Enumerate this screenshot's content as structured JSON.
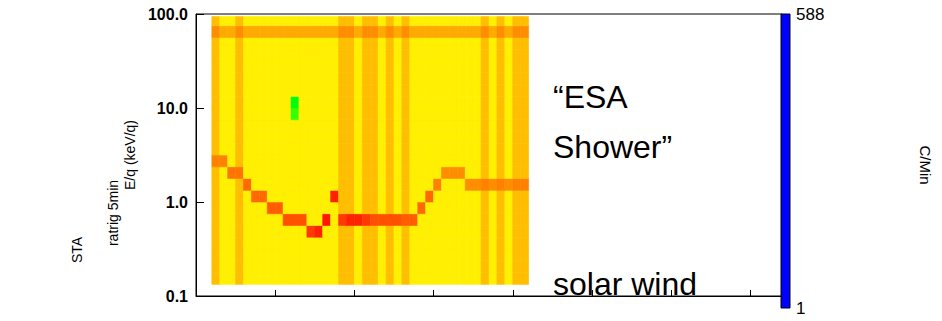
{
  "chart_data": {
    "type": "heatmap",
    "y_label": "E/q (keV/q)",
    "side_labels": [
      "STA",
      "ratrig 5min"
    ],
    "colorbar_label": "C/Min",
    "annotations": [
      "“ESA Shower”",
      "solar wind"
    ],
    "log": "y",
    "tick_labels": "y",
    "xlim": [
      0,
      74
    ],
    "xticks": [
      0,
      10,
      20,
      30,
      40,
      50,
      60,
      70
    ],
    "ylim": [
      0.1,
      100
    ],
    "yticks": [
      0.1,
      {
        "value": 1,
        "label": "1.0"
      },
      {
        "value": 10,
        "label": "10.0"
      },
      {
        "value": 100,
        "label": "100.0"
      }
    ],
    "time_bins": [
      2,
      3,
      4,
      5,
      6,
      7,
      8,
      9,
      10,
      11,
      12,
      13,
      14,
      15,
      16,
      17,
      18,
      19,
      20,
      21,
      22,
      23,
      24,
      25,
      26,
      27,
      28,
      29,
      30,
      31,
      32,
      33,
      34,
      35,
      36,
      37,
      38,
      39,
      40,
      41,
      42
    ],
    "energy_bins": [
      0.133,
      0.178,
      0.237,
      0.316,
      0.422,
      0.562,
      0.75,
      1.0,
      1.33,
      1.78,
      2.37,
      3.16,
      4.22,
      5.62,
      7.5,
      10,
      13.3,
      17.8,
      23.7,
      31.6,
      42.2,
      56.2,
      75,
      94
    ],
    "colorbar_range": [
      1,
      588
    ],
    "colorbar_ticks": [
      1,
      588
    ],
    "cells": [
      [
        420,
        370,
        370,
        420,
        370,
        370,
        370,
        370,
        370,
        370,
        370,
        370,
        370,
        370,
        370,
        370,
        420,
        420,
        370,
        420,
        420,
        370,
        420,
        370,
        420,
        370,
        370,
        370,
        370,
        370,
        370,
        370,
        370,
        370,
        420,
        370,
        420,
        370,
        420,
        420
      ],
      [
        420,
        370,
        370,
        420,
        370,
        370,
        370,
        370,
        370,
        370,
        370,
        370,
        370,
        370,
        370,
        370,
        420,
        420,
        370,
        420,
        420,
        370,
        420,
        370,
        420,
        370,
        370,
        370,
        370,
        370,
        370,
        370,
        370,
        370,
        420,
        370,
        420,
        370,
        420,
        420
      ],
      [
        420,
        370,
        370,
        420,
        370,
        370,
        370,
        370,
        370,
        370,
        370,
        370,
        370,
        370,
        370,
        370,
        420,
        420,
        370,
        420,
        420,
        370,
        420,
        370,
        420,
        370,
        370,
        370,
        370,
        370,
        370,
        370,
        370,
        370,
        420,
        370,
        420,
        370,
        420,
        420
      ],
      [
        420,
        370,
        370,
        420,
        370,
        370,
        370,
        370,
        370,
        370,
        370,
        370,
        370,
        370,
        370,
        370,
        420,
        420,
        370,
        420,
        420,
        370,
        420,
        370,
        420,
        370,
        370,
        370,
        370,
        370,
        370,
        370,
        370,
        370,
        420,
        370,
        420,
        370,
        420,
        420
      ],
      [
        420,
        370,
        370,
        420,
        370,
        370,
        370,
        370,
        370,
        370,
        370,
        370,
        540,
        560,
        370,
        370,
        420,
        420,
        370,
        420,
        420,
        370,
        420,
        370,
        420,
        370,
        370,
        370,
        370,
        370,
        370,
        370,
        370,
        370,
        420,
        370,
        420,
        370,
        420,
        420
      ],
      [
        420,
        370,
        370,
        420,
        370,
        370,
        370,
        370,
        370,
        520,
        520,
        520,
        370,
        370,
        570,
        370,
        540,
        560,
        560,
        540,
        520,
        520,
        520,
        520,
        510,
        510,
        370,
        370,
        370,
        370,
        370,
        370,
        370,
        370,
        420,
        370,
        420,
        370,
        420,
        420
      ],
      [
        420,
        370,
        370,
        420,
        370,
        370,
        370,
        510,
        510,
        370,
        370,
        370,
        370,
        370,
        370,
        370,
        420,
        420,
        370,
        420,
        420,
        370,
        420,
        370,
        420,
        370,
        500,
        370,
        370,
        370,
        370,
        370,
        370,
        370,
        420,
        370,
        420,
        370,
        420,
        420
      ],
      [
        420,
        370,
        370,
        420,
        370,
        500,
        500,
        370,
        370,
        370,
        370,
        370,
        370,
        370,
        370,
        560,
        420,
        420,
        370,
        420,
        420,
        370,
        420,
        370,
        420,
        370,
        370,
        500,
        370,
        370,
        370,
        370,
        370,
        370,
        420,
        370,
        420,
        370,
        420,
        420
      ],
      [
        420,
        370,
        370,
        420,
        500,
        370,
        370,
        370,
        370,
        370,
        370,
        370,
        370,
        370,
        370,
        370,
        420,
        420,
        370,
        420,
        420,
        370,
        420,
        370,
        420,
        370,
        370,
        370,
        480,
        370,
        370,
        370,
        470,
        470,
        480,
        470,
        480,
        470,
        480,
        480
      ],
      [
        420,
        370,
        490,
        490,
        370,
        370,
        370,
        370,
        370,
        370,
        370,
        370,
        370,
        370,
        370,
        370,
        420,
        420,
        370,
        420,
        420,
        370,
        420,
        370,
        420,
        370,
        370,
        370,
        370,
        470,
        470,
        470,
        370,
        370,
        420,
        370,
        420,
        370,
        420,
        420
      ],
      [
        480,
        480,
        370,
        420,
        370,
        370,
        370,
        370,
        370,
        370,
        370,
        370,
        370,
        370,
        370,
        370,
        420,
        420,
        370,
        420,
        420,
        370,
        420,
        370,
        420,
        370,
        370,
        370,
        370,
        370,
        370,
        370,
        370,
        370,
        420,
        370,
        420,
        370,
        420,
        420
      ],
      [
        420,
        370,
        370,
        420,
        370,
        370,
        370,
        370,
        370,
        370,
        370,
        370,
        370,
        370,
        370,
        370,
        420,
        420,
        370,
        420,
        420,
        370,
        420,
        370,
        420,
        370,
        370,
        370,
        370,
        370,
        370,
        370,
        370,
        370,
        420,
        370,
        420,
        370,
        420,
        420
      ],
      [
        420,
        370,
        370,
        420,
        370,
        370,
        370,
        370,
        370,
        370,
        370,
        370,
        370,
        370,
        370,
        370,
        420,
        420,
        370,
        420,
        420,
        370,
        420,
        370,
        420,
        370,
        370,
        370,
        370,
        370,
        370,
        370,
        370,
        370,
        420,
        370,
        420,
        370,
        420,
        420
      ],
      [
        420,
        370,
        370,
        420,
        370,
        370,
        370,
        370,
        370,
        370,
        370,
        370,
        370,
        370,
        370,
        370,
        420,
        420,
        370,
        420,
        420,
        370,
        420,
        370,
        420,
        370,
        370,
        370,
        370,
        370,
        370,
        370,
        370,
        370,
        420,
        370,
        420,
        370,
        420,
        420
      ],
      [
        420,
        370,
        370,
        420,
        370,
        370,
        370,
        370,
        370,
        370,
        260,
        370,
        370,
        370,
        370,
        370,
        420,
        420,
        370,
        420,
        420,
        370,
        420,
        370,
        420,
        370,
        370,
        370,
        370,
        370,
        370,
        370,
        370,
        370,
        420,
        370,
        420,
        370,
        420,
        420
      ],
      [
        420,
        370,
        370,
        420,
        370,
        370,
        370,
        370,
        370,
        370,
        230,
        370,
        370,
        370,
        370,
        370,
        420,
        420,
        370,
        420,
        420,
        370,
        420,
        370,
        420,
        370,
        370,
        370,
        370,
        370,
        370,
        370,
        370,
        370,
        420,
        370,
        420,
        370,
        420,
        420
      ],
      [
        420,
        370,
        370,
        420,
        370,
        370,
        370,
        370,
        370,
        370,
        370,
        370,
        370,
        370,
        370,
        370,
        420,
        420,
        370,
        420,
        420,
        370,
        420,
        370,
        420,
        370,
        370,
        370,
        370,
        370,
        370,
        370,
        370,
        370,
        420,
        370,
        420,
        370,
        420,
        420
      ],
      [
        420,
        370,
        370,
        420,
        370,
        370,
        370,
        370,
        370,
        370,
        370,
        370,
        370,
        370,
        370,
        370,
        420,
        420,
        370,
        420,
        420,
        370,
        420,
        370,
        420,
        370,
        370,
        370,
        370,
        370,
        370,
        370,
        370,
        370,
        420,
        370,
        420,
        370,
        420,
        420
      ],
      [
        420,
        370,
        370,
        420,
        370,
        370,
        370,
        370,
        370,
        370,
        370,
        370,
        370,
        370,
        370,
        370,
        420,
        420,
        370,
        420,
        420,
        370,
        420,
        370,
        420,
        370,
        370,
        370,
        370,
        370,
        370,
        370,
        370,
        370,
        420,
        370,
        420,
        370,
        420,
        420
      ],
      [
        420,
        370,
        370,
        420,
        370,
        370,
        370,
        370,
        370,
        370,
        370,
        370,
        370,
        370,
        370,
        370,
        420,
        420,
        370,
        420,
        420,
        370,
        420,
        370,
        420,
        370,
        370,
        370,
        370,
        370,
        370,
        370,
        370,
        370,
        420,
        370,
        420,
        370,
        420,
        420
      ],
      [
        420,
        370,
        370,
        420,
        370,
        370,
        370,
        370,
        370,
        370,
        370,
        370,
        370,
        370,
        370,
        370,
        420,
        420,
        370,
        420,
        420,
        370,
        420,
        370,
        420,
        370,
        370,
        370,
        370,
        370,
        370,
        370,
        370,
        370,
        420,
        370,
        420,
        370,
        420,
        420
      ],
      [
        470,
        440,
        440,
        470,
        440,
        440,
        440,
        440,
        440,
        440,
        440,
        440,
        440,
        440,
        440,
        440,
        470,
        470,
        440,
        470,
        470,
        440,
        470,
        440,
        470,
        440,
        440,
        440,
        440,
        440,
        440,
        440,
        440,
        440,
        470,
        440,
        470,
        440,
        470,
        470
      ],
      [
        420,
        370,
        370,
        420,
        370,
        370,
        370,
        370,
        370,
        370,
        370,
        370,
        370,
        370,
        370,
        370,
        420,
        420,
        370,
        420,
        420,
        370,
        420,
        370,
        420,
        370,
        370,
        370,
        370,
        370,
        370,
        370,
        370,
        370,
        420,
        370,
        420,
        370,
        420,
        420
      ]
    ]
  }
}
